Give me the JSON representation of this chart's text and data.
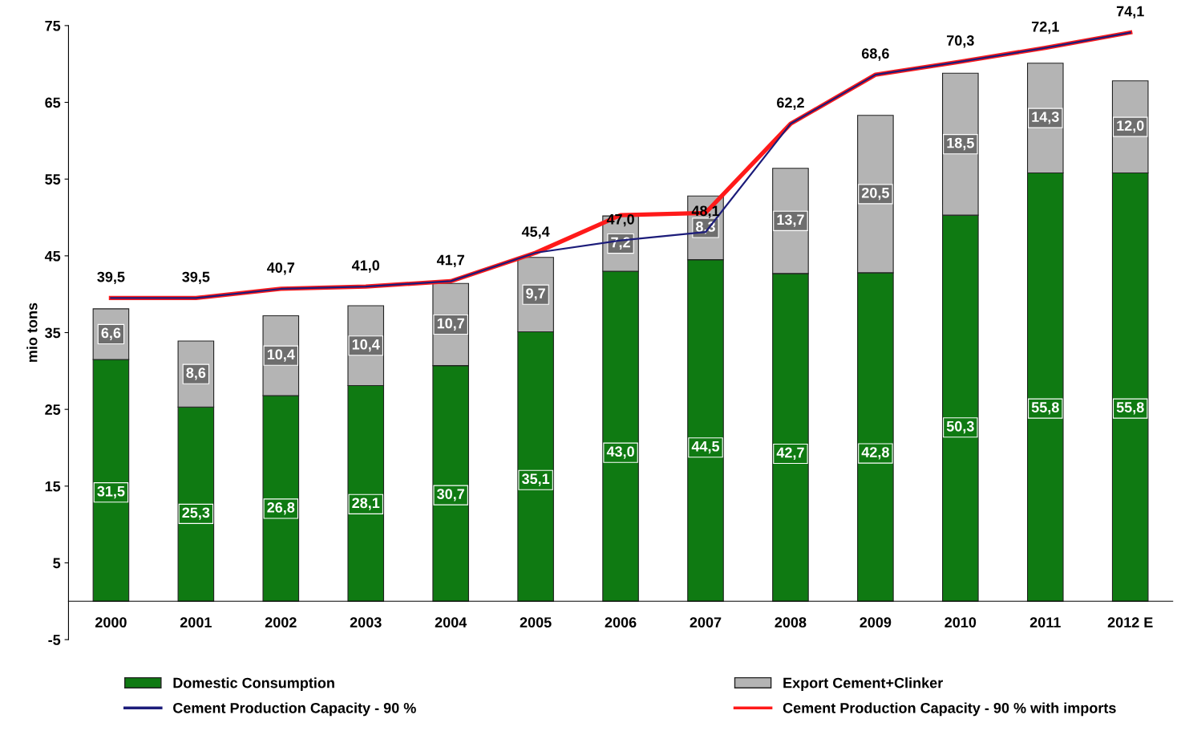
{
  "chart_data": {
    "type": "bar",
    "ylabel": "mio tons",
    "stacked": true,
    "categories": [
      "2000",
      "2001",
      "2002",
      "2003",
      "2004",
      "2005",
      "2006",
      "2007",
      "2008",
      "2009",
      "2010",
      "2011",
      "2012 E"
    ],
    "series": [
      {
        "name": "Domestic Consumption",
        "color": "#0f7a12",
        "values": [
          31.5,
          25.3,
          26.8,
          28.1,
          30.7,
          35.1,
          43.0,
          44.5,
          42.7,
          42.8,
          50.3,
          55.8,
          55.8
        ],
        "value_labels": [
          "31,5",
          "25,3",
          "26,8",
          "28,1",
          "30,7",
          "35,1",
          "43,0",
          "44,5",
          "42,7",
          "42,8",
          "50,3",
          "55,8",
          "55,8"
        ]
      },
      {
        "name": "Export Cement+Clinker",
        "color": "#b4b4b4",
        "values": [
          6.6,
          8.6,
          10.4,
          10.4,
          10.7,
          9.7,
          7.2,
          8.3,
          13.7,
          20.5,
          18.5,
          14.3,
          12.0
        ],
        "value_labels": [
          "6,6",
          "8,6",
          "10,4",
          "10,4",
          "10,7",
          "9,7",
          "7,2",
          "8,3",
          "13,7",
          "20,5",
          "18,5",
          "14,3",
          "12,0"
        ]
      },
      {
        "name": "Cement Production Capacity - 90 %",
        "type": "line",
        "color": "#1c1c7a",
        "values": [
          39.5,
          39.5,
          40.7,
          41.0,
          41.7,
          45.4,
          47.0,
          48.1,
          62.2,
          68.6,
          70.3,
          72.1,
          74.1
        ],
        "value_labels": [
          "39,5",
          "39,5",
          "40,7",
          "41,0",
          "41,7",
          "45,4",
          "47,0",
          "48,1",
          "62,2",
          "68,6",
          "70,3",
          "72,1",
          "74,1"
        ]
      },
      {
        "name": "Cement Production Capacity - 90 % with imports",
        "type": "line",
        "color": "#ff1a1a",
        "values": [
          39.5,
          39.5,
          40.7,
          41.0,
          41.7,
          45.4,
          50.3,
          50.6,
          62.2,
          68.6,
          70.3,
          72.1,
          74.1
        ]
      }
    ],
    "ylim": [
      -5,
      75
    ],
    "yticks": [
      -5,
      5,
      15,
      25,
      35,
      45,
      55,
      65,
      75
    ],
    "grid": false,
    "legend": "bottom",
    "marker": "none",
    "line_style": "solid"
  }
}
